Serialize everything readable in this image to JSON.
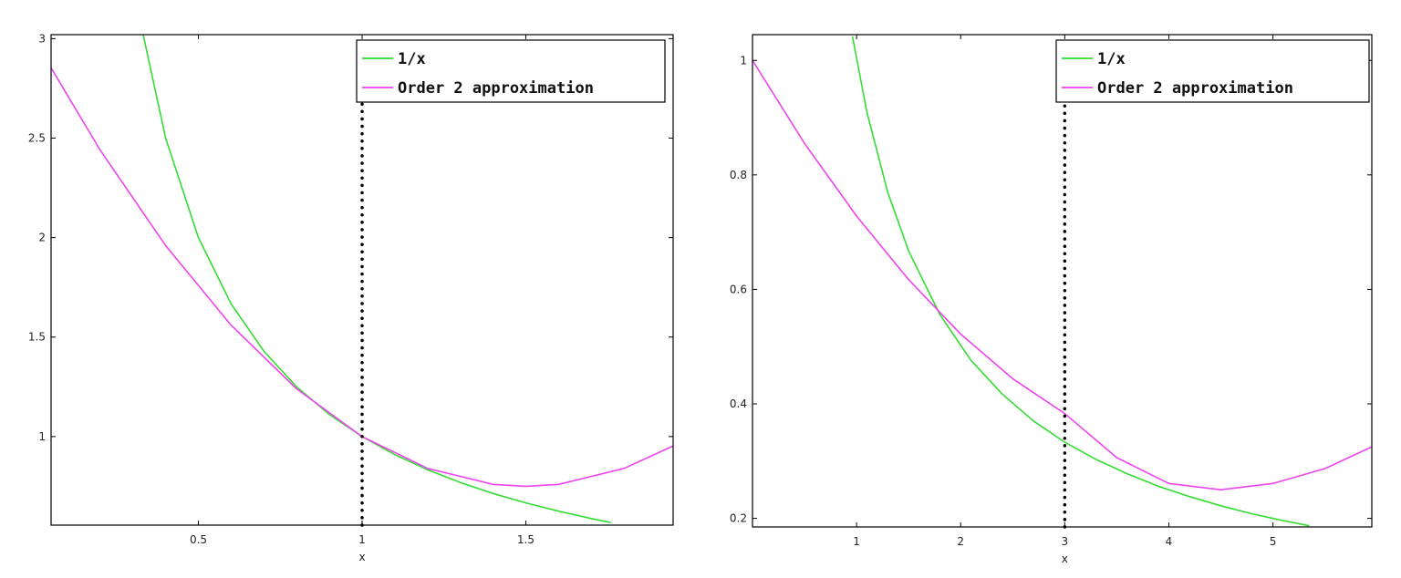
{
  "chart_data": [
    {
      "type": "line",
      "title": "",
      "xlabel": "x",
      "ylabel": "",
      "xlim": [
        0.05,
        1.95
      ],
      "ylim": [
        0.555,
        3.02
      ],
      "xticks": [
        0.5,
        1,
        1.5
      ],
      "xtick_labels": [
        "0.5",
        "1",
        "1.5"
      ],
      "yticks": [
        1,
        1.5,
        2,
        2.5,
        3
      ],
      "ytick_labels": [
        "1",
        "1.5",
        "2",
        "2.5",
        "3"
      ],
      "center": 1,
      "grid": false,
      "legend_position": "top-right",
      "series": [
        {
          "name": "1/x",
          "color": "#33dd33",
          "x": [
            0.33,
            0.4,
            0.5,
            0.6,
            0.7,
            0.8,
            0.9,
            1.0,
            1.1,
            1.2,
            1.3,
            1.4,
            1.5,
            1.6,
            1.7,
            1.76
          ],
          "y": [
            3.03,
            2.5,
            2.0,
            1.667,
            1.429,
            1.25,
            1.111,
            1.0,
            0.909,
            0.833,
            0.769,
            0.714,
            0.667,
            0.625,
            0.588,
            0.568
          ]
        },
        {
          "name": "Order 2 approximation",
          "color": "#ee44ee",
          "x": [
            0.05,
            0.2,
            0.4,
            0.6,
            0.8,
            1.0,
            1.2,
            1.4,
            1.5,
            1.6,
            1.8,
            1.95
          ],
          "y": [
            2.853,
            2.44,
            1.96,
            1.56,
            1.24,
            1.0,
            0.84,
            0.76,
            0.75,
            0.76,
            0.84,
            0.953
          ]
        }
      ],
      "center_line": {
        "x": 1,
        "style": "dotted",
        "color": "#000000"
      }
    },
    {
      "type": "line",
      "title": "",
      "xlabel": "x",
      "ylabel": "",
      "xlim": [
        0.0,
        5.95
      ],
      "ylim": [
        0.185,
        1.045
      ],
      "xticks": [
        1,
        2,
        3,
        4,
        5
      ],
      "xtick_labels": [
        "1",
        "2",
        "3",
        "4",
        "5"
      ],
      "yticks": [
        0.2,
        0.4,
        0.6,
        0.8,
        1
      ],
      "ytick_labels": [
        "0.2",
        "0.4",
        "0.6",
        "0.8",
        "1"
      ],
      "center": 3,
      "grid": false,
      "legend_position": "top-right",
      "series": [
        {
          "name": "1/x",
          "color": "#33dd33",
          "x": [
            0.96,
            1.1,
            1.3,
            1.5,
            1.8,
            2.1,
            2.4,
            2.7,
            3.0,
            3.3,
            3.6,
            3.9,
            4.2,
            4.5,
            4.8,
            5.1,
            5.35
          ],
          "y": [
            1.042,
            0.909,
            0.769,
            0.667,
            0.556,
            0.476,
            0.417,
            0.37,
            0.333,
            0.303,
            0.278,
            0.256,
            0.238,
            0.222,
            0.208,
            0.196,
            0.187
          ]
        },
        {
          "name": "Order 2 approximation",
          "color": "#ee44ee",
          "x": [
            0.0,
            0.5,
            1.0,
            1.5,
            2.0,
            2.5,
            3.0,
            3.5,
            4.0,
            4.5,
            5.0,
            5.5,
            5.95
          ],
          "y": [
            1.0,
            0.855,
            0.728,
            0.617,
            0.522,
            0.444,
            0.383,
            0.306,
            0.261,
            0.25,
            0.261,
            0.287,
            0.325
          ]
        }
      ],
      "center_line": {
        "x": 3,
        "style": "dotted",
        "color": "#000000"
      }
    }
  ]
}
